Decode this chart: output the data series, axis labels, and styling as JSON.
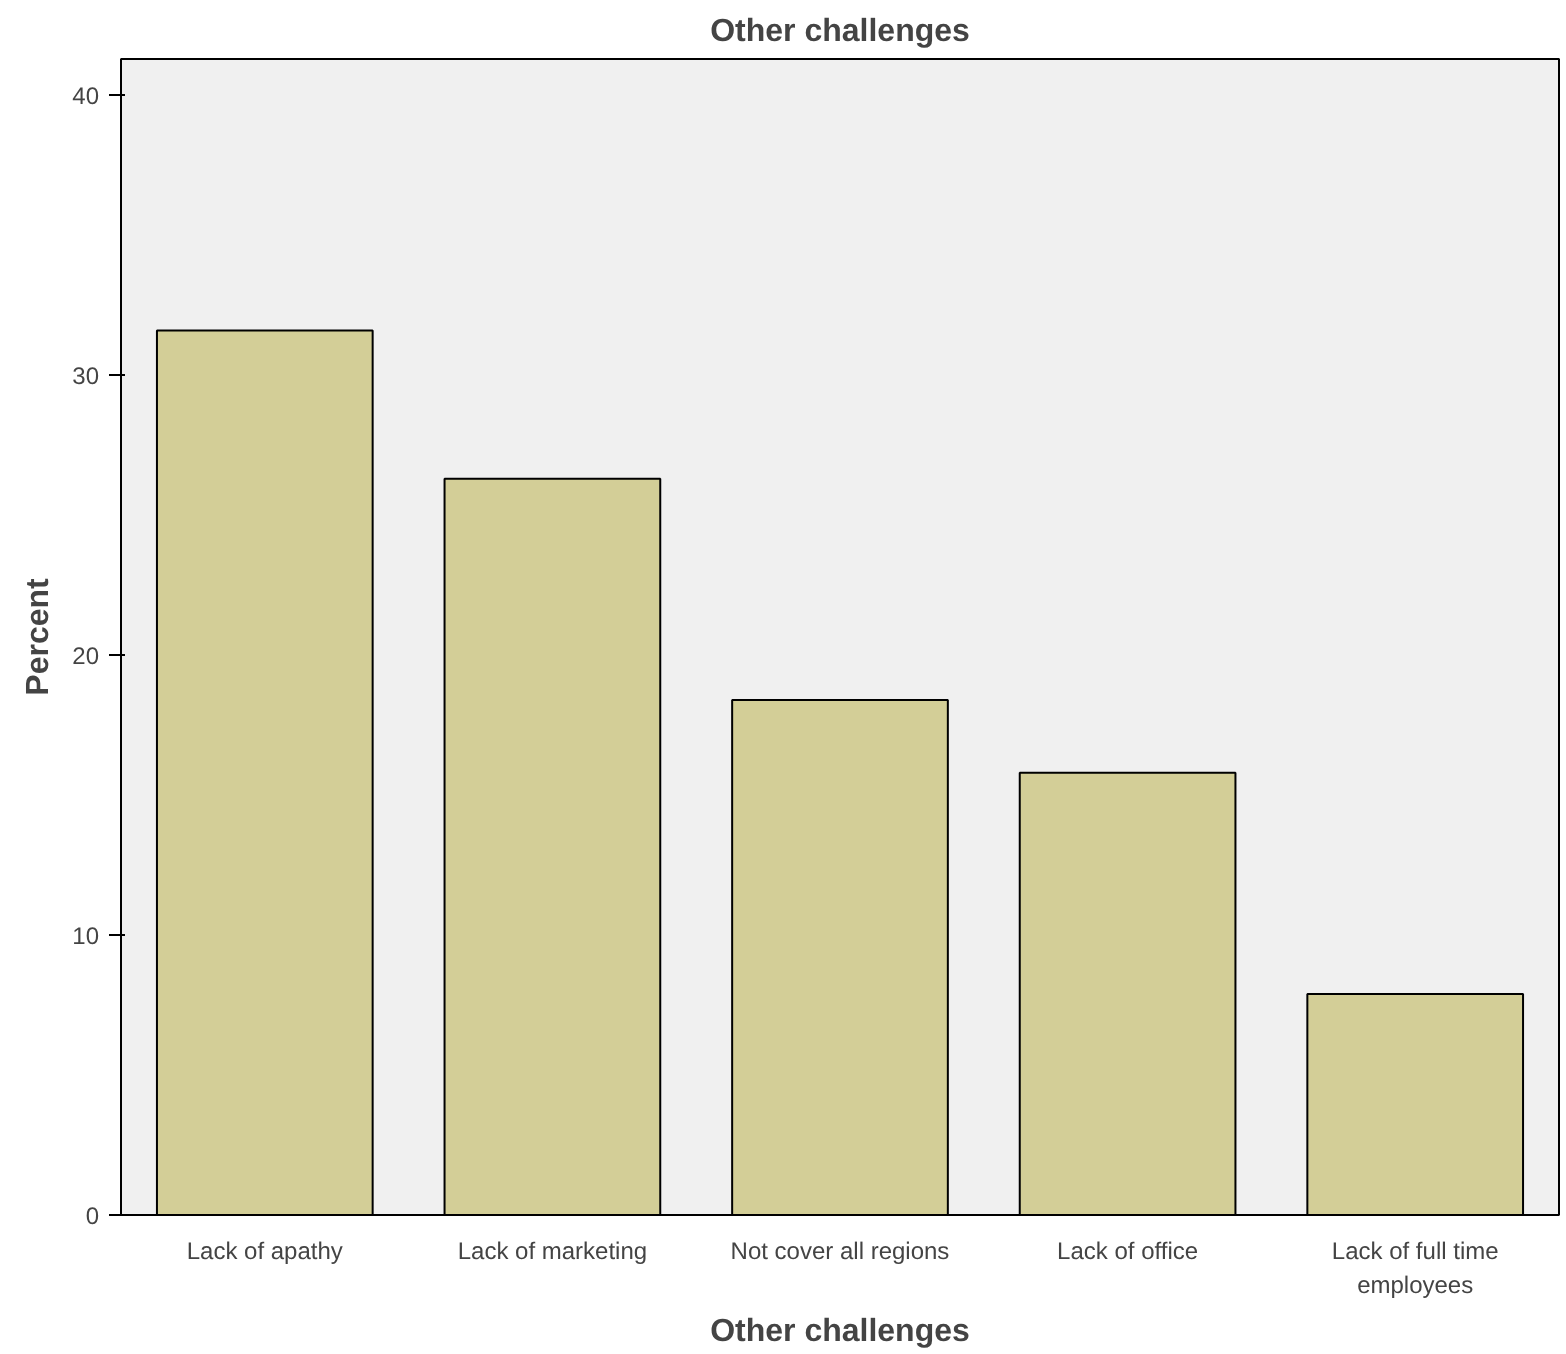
{
  "chart_data": {
    "type": "bar",
    "title": "Other challenges",
    "xlabel": "Other challenges",
    "ylabel": "Percent",
    "categories": [
      "Lack of apathy",
      "Lack of marketing",
      "Not cover all regions",
      "Lack of office",
      "Lack of full time employees"
    ],
    "values": [
      31.6,
      26.3,
      18.4,
      15.8,
      7.9
    ],
    "color": "#d3ce97",
    "ylim": [
      0,
      41.3
    ],
    "yticks": [
      0,
      10,
      20,
      30,
      40
    ],
    "grid": false
  }
}
